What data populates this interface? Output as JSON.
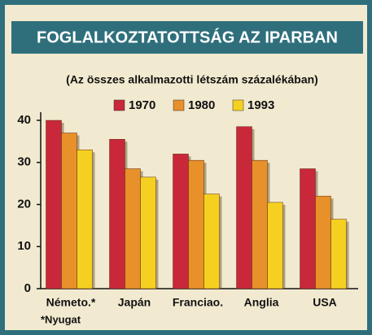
{
  "chart_data": {
    "type": "bar",
    "title": "FOGLALKOZTATOTTSÁG AZ IPARBAN",
    "subtitle": "(Az összes alkalmazotti létszám százalékában)",
    "categories": [
      "Németo.*",
      "Japán",
      "Franciao.",
      "Anglia",
      "USA"
    ],
    "series": [
      {
        "name": "1970",
        "color": "#c8283a",
        "values": [
          40,
          35.5,
          32,
          38.5,
          28.5
        ]
      },
      {
        "name": "1980",
        "color": "#e8902a",
        "values": [
          37,
          28.5,
          30.5,
          30.5,
          22
        ]
      },
      {
        "name": "1993",
        "color": "#f5d020",
        "values": [
          33,
          26.5,
          22.5,
          20.5,
          16.5
        ]
      }
    ],
    "ylim": [
      0,
      40
    ],
    "yticks": [
      0,
      10,
      20,
      30,
      40
    ],
    "footnote": "*Nyugat"
  }
}
